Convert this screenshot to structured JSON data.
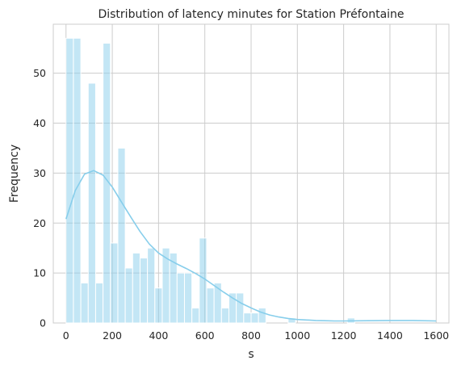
{
  "chart_data": {
    "type": "bar",
    "title": "Distribution of latency minutes for Station Préfontaine",
    "xlabel": "s",
    "ylabel": "Frequency",
    "xlim": [
      -55,
      1655
    ],
    "ylim": [
      0,
      59.8
    ],
    "xticks": [
      0,
      200,
      400,
      600,
      800,
      1000,
      1200,
      1400,
      1600
    ],
    "yticks": [
      0,
      10,
      20,
      30,
      40,
      50
    ],
    "grid": true,
    "bar_color": "#87ceeb",
    "kde_color": "#87ceeb",
    "bin_width": 32,
    "bin_start": 0,
    "counts": [
      57,
      57,
      8,
      48,
      8,
      56,
      16,
      35,
      11,
      14,
      13,
      15,
      7,
      15,
      14,
      10,
      10,
      3,
      17,
      7,
      8,
      3,
      6,
      6,
      2,
      2,
      3,
      0,
      0,
      0,
      1,
      0,
      0,
      0,
      0,
      0,
      0,
      0,
      1,
      0,
      0,
      0,
      0,
      0,
      0,
      0,
      0,
      0,
      0,
      0
    ],
    "kde": {
      "x": [
        0,
        40,
        80,
        120,
        160,
        200,
        240,
        280,
        320,
        360,
        400,
        440,
        480,
        520,
        560,
        600,
        640,
        680,
        720,
        760,
        800,
        840,
        880,
        920,
        960,
        1000,
        1040,
        1080,
        1120,
        1160,
        1200,
        1300,
        1400,
        1500,
        1600
      ],
      "y": [
        20.8,
        26.5,
        29.8,
        30.5,
        29.6,
        27.2,
        24.2,
        21.2,
        18.3,
        15.8,
        14.0,
        12.8,
        11.8,
        10.9,
        9.9,
        8.8,
        7.5,
        6.2,
        5.0,
        3.9,
        3.0,
        2.2,
        1.6,
        1.2,
        0.9,
        0.7,
        0.6,
        0.5,
        0.45,
        0.4,
        0.4,
        0.45,
        0.5,
        0.5,
        0.4
      ]
    }
  }
}
